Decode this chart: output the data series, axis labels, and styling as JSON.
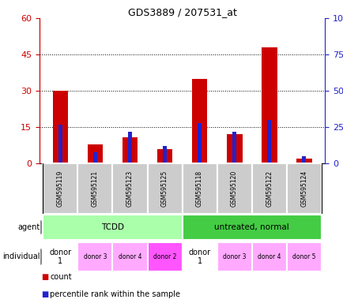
{
  "title": "GDS3889 / 207531_at",
  "samples": [
    "GSM595119",
    "GSM595121",
    "GSM595123",
    "GSM595125",
    "GSM595118",
    "GSM595120",
    "GSM595122",
    "GSM595124"
  ],
  "counts": [
    30,
    8,
    11,
    6,
    35,
    12,
    48,
    2
  ],
  "percentile_ranks": [
    27,
    8,
    22,
    12,
    28,
    22,
    30,
    5
  ],
  "ylim_left": [
    0,
    60
  ],
  "ylim_right": [
    0,
    100
  ],
  "yticks_left": [
    0,
    15,
    30,
    45,
    60
  ],
  "yticks_right": [
    0,
    25,
    50,
    75,
    100
  ],
  "yticklabels_right": [
    "0",
    "25",
    "50",
    "75",
    "100%"
  ],
  "agent_groups": [
    {
      "label": "TCDD",
      "start": 0,
      "end": 4,
      "color": "#aaffaa"
    },
    {
      "label": "untreated, normal",
      "start": 4,
      "end": 8,
      "color": "#44cc44"
    }
  ],
  "individual_labels": [
    "donor\n1",
    "donor 3",
    "donor 4",
    "donor 2",
    "donor\n1",
    "donor 3",
    "donor 4",
    "donor 5"
  ],
  "individual_colors": [
    "#ffffff",
    "#ffaaff",
    "#ffaaff",
    "#ff55ff",
    "#ffffff",
    "#ffaaff",
    "#ffaaff",
    "#ffaaff"
  ],
  "bar_color_red": "#cc0000",
  "bar_color_blue": "#2222cc",
  "bar_width": 0.45,
  "blue_bar_width": 0.12,
  "sample_bg_color": "#cccccc",
  "legend_count_color": "#cc0000",
  "legend_percentile_color": "#2222cc",
  "left_tick_color": "#cc0000",
  "right_tick_color": "#2222cc",
  "agent_label": "agent",
  "individual_label": "individual",
  "grid_lines": [
    15,
    30,
    45
  ]
}
